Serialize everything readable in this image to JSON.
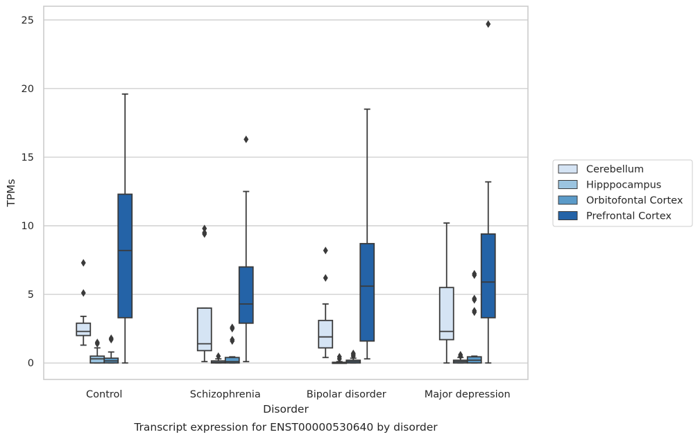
{
  "chart_data": {
    "type": "boxplot",
    "caption": "Transcript expression for ENST00000530640 by disorder",
    "xlabel": "Disorder",
    "ylabel": "TPMs",
    "ylim": [
      -1.2,
      26
    ],
    "yticks": [
      0,
      5,
      10,
      15,
      20,
      25
    ],
    "grid": "horizontal",
    "legend_position": "right",
    "categories": [
      "Control",
      "Schizophrenia",
      "Bipolar disorder",
      "Major depression"
    ],
    "series": [
      {
        "name": "Cerebellum",
        "color": "#d5e4f4",
        "boxes": [
          {
            "whislo": 1.3,
            "q1": 2.0,
            "med": 2.3,
            "q3": 2.9,
            "whishi": 3.4,
            "fliers": [
              5.1,
              7.3
            ]
          },
          {
            "whislo": 0.1,
            "q1": 0.9,
            "med": 1.4,
            "q3": 4.0,
            "whishi": 4.0,
            "fliers": [
              9.4,
              9.5,
              9.8
            ]
          },
          {
            "whislo": 0.4,
            "q1": 1.1,
            "med": 1.9,
            "q3": 3.1,
            "whishi": 4.3,
            "fliers": [
              6.2,
              8.2
            ]
          },
          {
            "whislo": 0.0,
            "q1": 1.7,
            "med": 2.3,
            "q3": 5.5,
            "whishi": 10.2,
            "fliers": []
          }
        ]
      },
      {
        "name": "Hipppocampus",
        "color": "#9bc4e0",
        "boxes": [
          {
            "whislo": 0.0,
            "q1": 0.0,
            "med": 0.3,
            "q3": 0.5,
            "whishi": 1.1,
            "fliers": [
              1.4,
              1.5
            ]
          },
          {
            "whislo": 0.0,
            "q1": 0.0,
            "med": 0.05,
            "q3": 0.15,
            "whishi": 0.3,
            "fliers": [
              0.5
            ]
          },
          {
            "whislo": 0.0,
            "q1": 0.0,
            "med": 0.0,
            "q3": 0.05,
            "whishi": 0.1,
            "fliers": [
              0.3,
              0.45
            ]
          },
          {
            "whislo": 0.0,
            "q1": 0.0,
            "med": 0.1,
            "q3": 0.2,
            "whishi": 0.4,
            "fliers": [
              0.5,
              0.6
            ]
          }
        ]
      },
      {
        "name": "Orbitofontal Cortex",
        "color": "#5b9bc9",
        "boxes": [
          {
            "whislo": 0.0,
            "q1": 0.0,
            "med": 0.15,
            "q3": 0.35,
            "whishi": 0.8,
            "fliers": [
              1.7,
              1.8
            ]
          },
          {
            "whislo": 0.0,
            "q1": 0.0,
            "med": 0.1,
            "q3": 0.4,
            "whishi": 0.45,
            "fliers": [
              1.6,
              1.7,
              2.5,
              2.6
            ]
          },
          {
            "whislo": 0.0,
            "q1": 0.0,
            "med": 0.1,
            "q3": 0.2,
            "whishi": 0.35,
            "fliers": [
              0.5,
              0.6,
              0.7
            ]
          },
          {
            "whislo": 0.0,
            "q1": 0.0,
            "med": 0.2,
            "q3": 0.45,
            "whishi": 0.5,
            "fliers": [
              3.7,
              3.8,
              4.6,
              4.7,
              6.4,
              6.5
            ]
          }
        ]
      },
      {
        "name": "Prefrontal Cortex",
        "color": "#2463a7",
        "boxes": [
          {
            "whislo": 0.0,
            "q1": 3.3,
            "med": 8.2,
            "q3": 12.3,
            "whishi": 19.6,
            "fliers": []
          },
          {
            "whislo": 0.1,
            "q1": 2.9,
            "med": 4.3,
            "q3": 7.0,
            "whishi": 12.5,
            "fliers": [
              16.3
            ]
          },
          {
            "whislo": 0.3,
            "q1": 1.6,
            "med": 5.6,
            "q3": 8.7,
            "whishi": 18.5,
            "fliers": []
          },
          {
            "whislo": 0.0,
            "q1": 3.3,
            "med": 5.9,
            "q3": 9.4,
            "whishi": 13.2,
            "fliers": [
              24.7
            ]
          }
        ]
      }
    ],
    "colors": {
      "outline": "#3a3a3a",
      "grid": "#cccccc",
      "frame": "#cccccc"
    }
  }
}
